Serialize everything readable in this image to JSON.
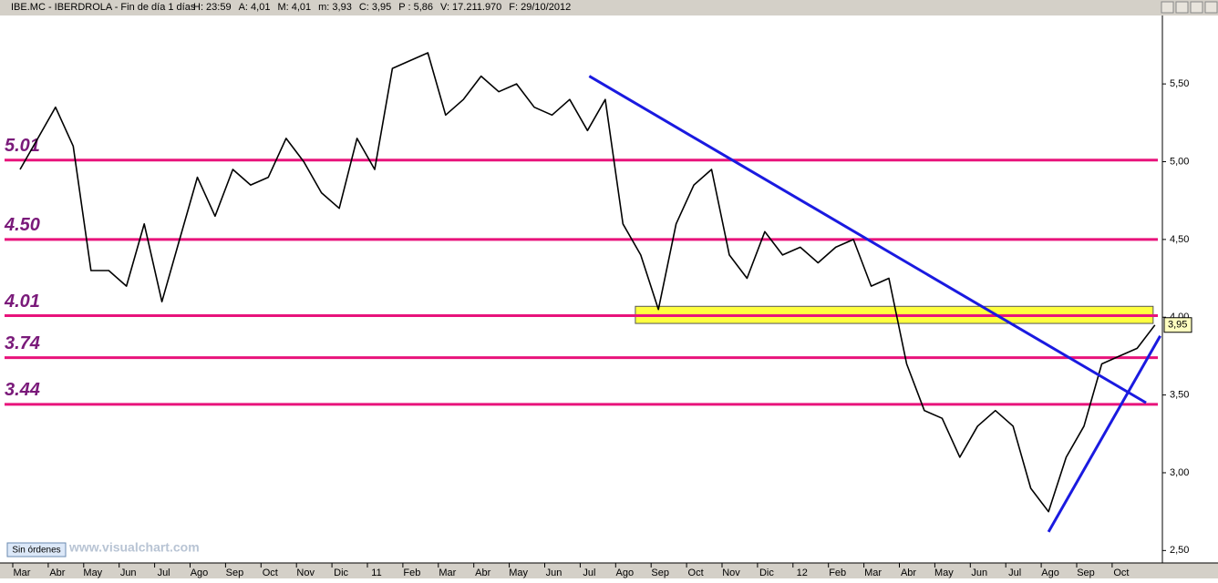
{
  "header": {
    "symbol": "IBE.MC - IBERDROLA - Fin de día 1 días",
    "fields": [
      {
        "text": "H: 23:59",
        "color": "#000000"
      },
      {
        "text": "A: 4,01",
        "color": "#000000"
      },
      {
        "text": "M: 4,01",
        "color": "#000000"
      },
      {
        "text": "m: 3,93",
        "color": "#000000"
      },
      {
        "text": "C: 3,95",
        "color": "#000000"
      },
      {
        "text": "P : 5,86",
        "color": "#d00000"
      },
      {
        "text": "V: 17.211.970",
        "color": "#000000"
      },
      {
        "text": "F: 29/10/2012",
        "color": "#000000"
      }
    ]
  },
  "footer": {
    "button": "Sin órdenes",
    "watermark": "www.visualchart.com"
  },
  "chart_data": {
    "type": "line",
    "categories": [
      "Mar",
      null,
      "Abr",
      null,
      "May",
      null,
      "Jun",
      null,
      "Jul",
      null,
      "Ago",
      null,
      "Sep",
      null,
      "Oct",
      null,
      "Nov",
      null,
      "Dic",
      null,
      "11",
      null,
      "Feb",
      null,
      "Mar",
      null,
      "Abr",
      null,
      "May",
      null,
      "Jun",
      null,
      "Jul",
      null,
      "Ago",
      null,
      "Sep",
      null,
      "Oct",
      null,
      "Nov",
      null,
      "Dic",
      null,
      "12",
      null,
      "Feb",
      null,
      "Mar",
      null,
      "Abr",
      null,
      "May",
      null,
      "Jun",
      null,
      "Jul",
      null,
      "Ago",
      null,
      "Sep",
      null,
      "Oct",
      null,
      null
    ],
    "series": [
      {
        "name": "IBE.MC",
        "color": "#000000",
        "values": [
          4.95,
          5.15,
          5.35,
          5.1,
          4.3,
          4.3,
          4.2,
          4.6,
          4.1,
          4.5,
          4.9,
          4.65,
          4.95,
          4.85,
          4.9,
          5.15,
          5.0,
          4.8,
          4.7,
          5.15,
          4.95,
          5.6,
          5.65,
          5.7,
          5.3,
          5.4,
          5.55,
          5.45,
          5.5,
          5.35,
          5.3,
          5.4,
          5.2,
          5.4,
          4.6,
          4.4,
          4.05,
          4.6,
          4.85,
          4.95,
          4.4,
          4.25,
          4.55,
          4.4,
          4.45,
          4.35,
          4.45,
          4.5,
          4.2,
          4.25,
          3.7,
          3.4,
          3.35,
          3.1,
          3.3,
          3.4,
          3.3,
          2.9,
          2.75,
          3.1,
          3.3,
          3.7,
          3.75,
          3.8,
          3.95
        ]
      }
    ],
    "ylim": [
      2.42,
      5.94
    ],
    "yticks": [
      {
        "value": 2.5,
        "label": "2,50"
      },
      {
        "value": 3.0,
        "label": "3,00"
      },
      {
        "value": 3.5,
        "label": "3,50"
      },
      {
        "value": 4.0,
        "label": "4,00"
      },
      {
        "value": 4.5,
        "label": "4,50"
      },
      {
        "value": 5.0,
        "label": "5,00"
      },
      {
        "value": 5.5,
        "label": "5,50"
      }
    ],
    "levels": [
      5.01,
      {
        "value": 4.5,
        "label": "4.50"
      },
      4.01,
      3.74,
      3.44
    ],
    "level_color": "#e8137b",
    "trendlines": [
      {
        "start_x": 32.1,
        "start": 5.55,
        "end_x": 63.5,
        "end": 3.45
      },
      {
        "start_x": 58,
        "start": 2.62,
        "end_x": 64.3,
        "end": 3.88
      }
    ],
    "trend_color": "#1a1ae0",
    "zone": {
      "start_x": 34.7,
      "end_x": 63.9,
      "low": 3.96,
      "high": 4.07,
      "color": "#ffff40"
    },
    "last": {
      "value": 3.95,
      "label": "3,95"
    }
  }
}
